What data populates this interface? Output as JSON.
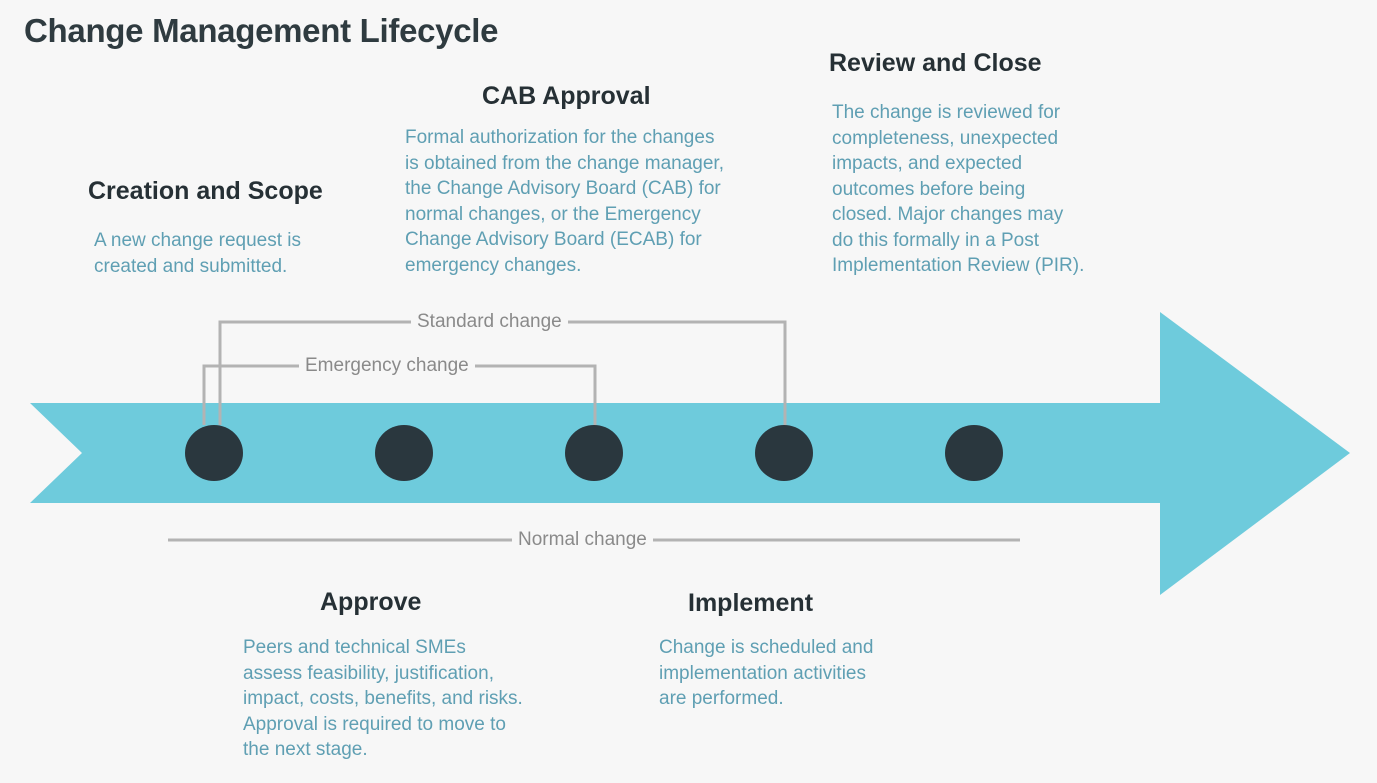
{
  "title": "Change Management Lifecycle",
  "colors": {
    "arrow": "#6ecbdc",
    "node": "#2a373e",
    "connector": "#b3b3b3",
    "heading": "#263035",
    "body_text": "#5f9fb3"
  },
  "stages": [
    {
      "id": "creation",
      "title": "Creation and Scope",
      "description": [
        "A new change request is",
        "created and submitted."
      ]
    },
    {
      "id": "approve",
      "title": "Approve",
      "description": [
        "Peers and technical SMEs",
        "assess feasibility, justification,",
        "impact, costs, benefits, and risks.",
        "Approval is required to move to",
        "the next stage."
      ]
    },
    {
      "id": "cab",
      "title": "CAB Approval",
      "description": [
        "Formal authorization for the changes",
        "is obtained from the change manager,",
        "the Change Advisory Board (CAB) for",
        "normal changes, or the Emergency",
        "Change Advisory Board (ECAB) for",
        "emergency changes."
      ]
    },
    {
      "id": "implement",
      "title": "Implement",
      "description": [
        "Change is scheduled and",
        "implementation activities",
        "are performed."
      ]
    },
    {
      "id": "review",
      "title": "Review and Close",
      "description": [
        "The change is reviewed for",
        "completeness, unexpected",
        "impacts, and expected",
        "outcomes before being",
        "closed. Major changes may",
        "do this formally in a Post",
        "Implementation Review (PIR)."
      ]
    }
  ],
  "paths": {
    "standard": "Standard change",
    "emergency": "Emergency change",
    "normal": "Normal change"
  }
}
